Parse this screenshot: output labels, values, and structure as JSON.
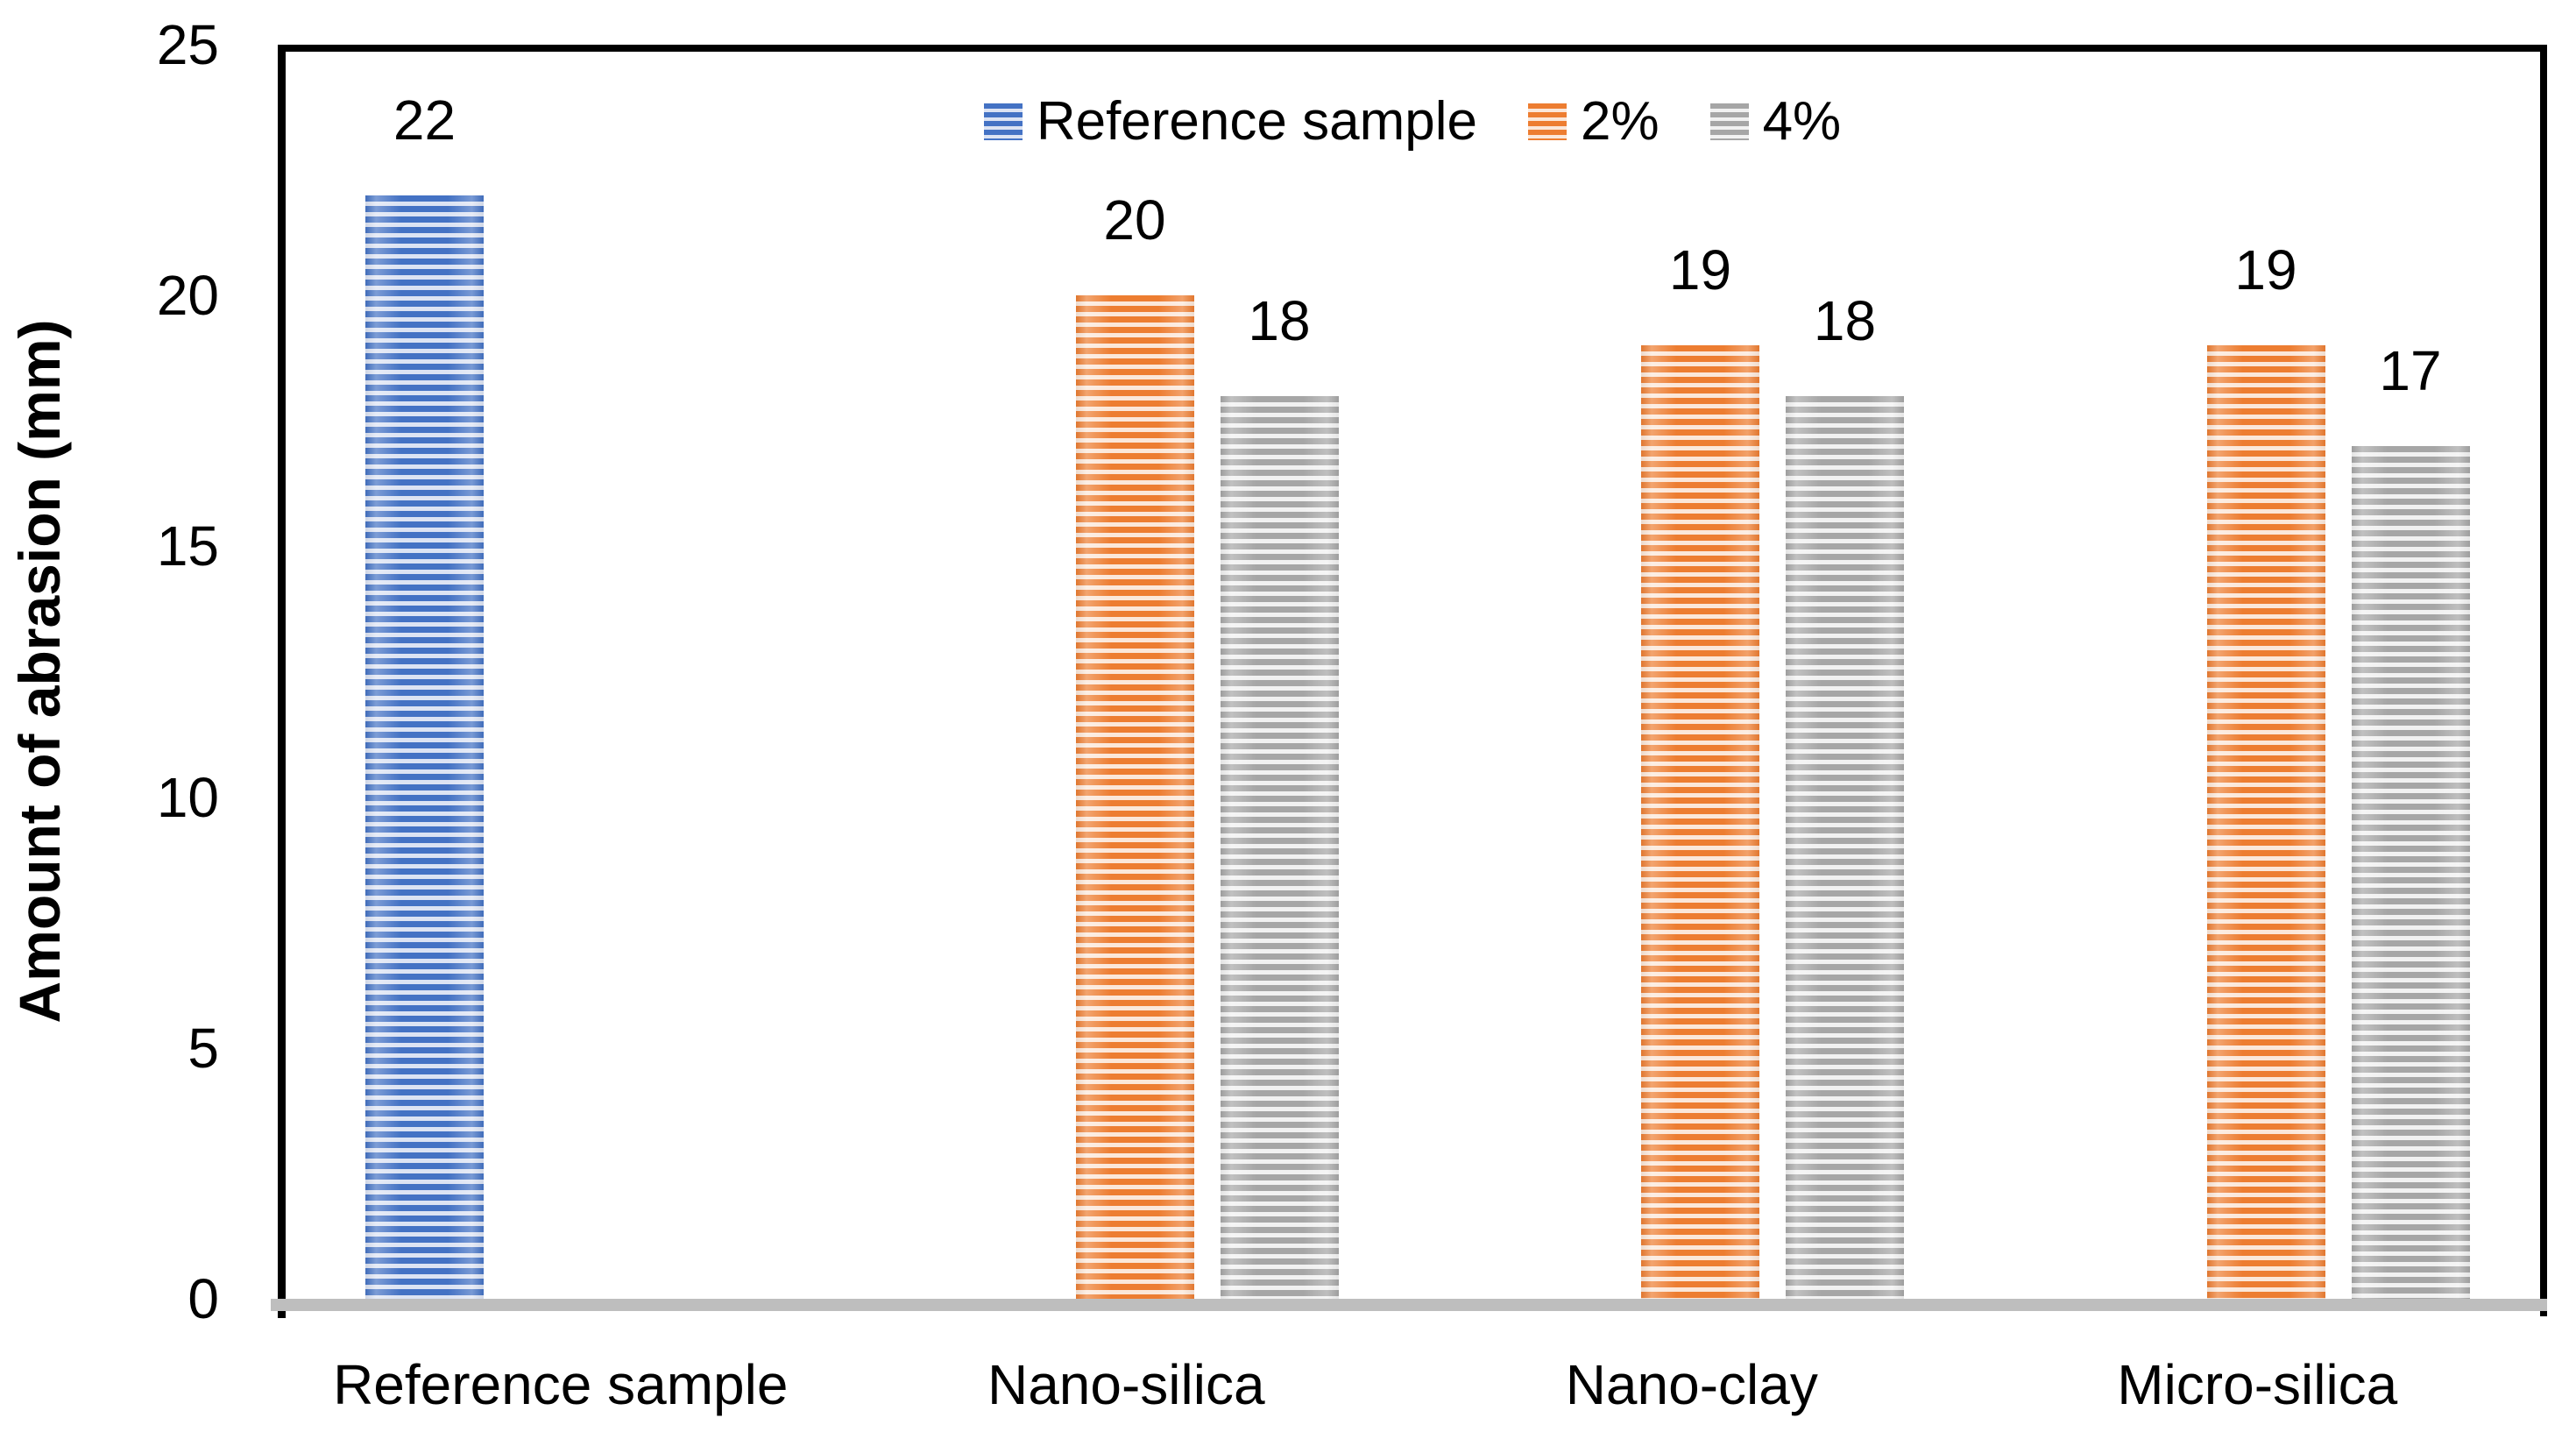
{
  "chart_data": {
    "type": "bar",
    "title": "",
    "xlabel": "",
    "ylabel": "Amount of abrasion (mm)",
    "ylim": [
      0,
      25
    ],
    "yticks": [
      0,
      5,
      10,
      15,
      20,
      25
    ],
    "grid": false,
    "legend_position": "top-center",
    "bar_labels_shown": true,
    "bar_fill_style": "horizontal-stripes",
    "categories": [
      "Reference sample",
      "Nano-silica",
      "Nano-clay",
      "Micro-silica"
    ],
    "series": [
      {
        "name": "Reference sample",
        "values": [
          22,
          null,
          null,
          null
        ],
        "color": "#4472C4",
        "stripe_light": "#DCE3F3"
      },
      {
        "name": "2%",
        "values": [
          null,
          20,
          19,
          19
        ],
        "color": "#ED7D31",
        "stripe_light": "#FBE7D9"
      },
      {
        "name": "4%",
        "values": [
          null,
          18,
          18,
          17
        ],
        "color": "#A6A6A6",
        "stripe_light": "#F1F1F1"
      }
    ]
  },
  "colors": {
    "background": "#FFFFFF",
    "plot_border": "#000000",
    "baseline": "#BEBEBE",
    "text": "#000000"
  }
}
